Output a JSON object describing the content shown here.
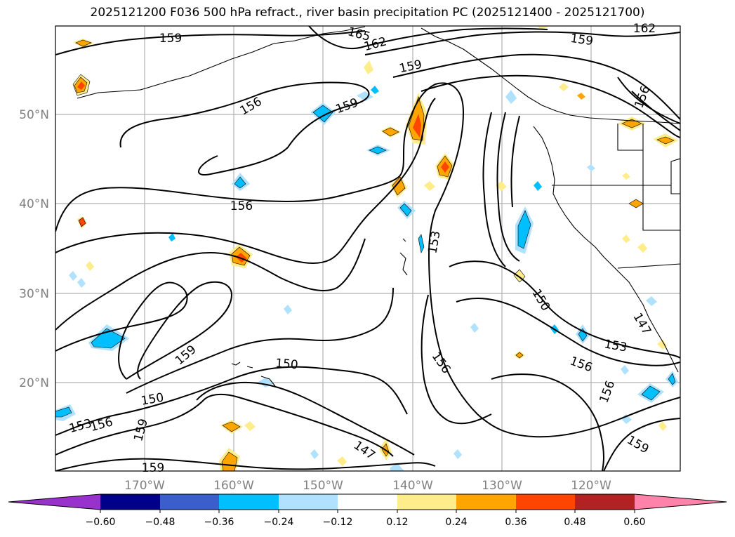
{
  "title": "2025121200 F036 500 hPa refract., river basin precipitation PC (2025121400 - 2025121700)",
  "map": {
    "lat_labels": [
      "50°N",
      "40°N",
      "30°N",
      "20°N"
    ],
    "lon_labels": [
      "170°W",
      "160°W",
      "150°W",
      "140°W",
      "130°W",
      "120°W"
    ],
    "contour_labels": [
      "159",
      "165",
      "162",
      "162",
      "159",
      "159",
      "156",
      "156",
      "159",
      "156",
      "153",
      "150",
      "150",
      "147",
      "153",
      "156",
      "156",
      "159",
      "153",
      "156",
      "159",
      "150",
      "159",
      "147",
      "156",
      "159"
    ]
  },
  "colorbar": {
    "tick_labels": [
      "−0.60",
      "−0.48",
      "−0.36",
      "−0.24",
      "−0.12",
      "0.12",
      "0.24",
      "0.36",
      "0.48",
      "0.60"
    ],
    "colors": [
      "#9932cc",
      "#00008b",
      "#3a5fcd",
      "#00bfff",
      "#b0e2ff",
      "#ffffff",
      "#ffec8b",
      "#ffa500",
      "#ff4500",
      "#b22222",
      "#ff82ab"
    ]
  }
}
